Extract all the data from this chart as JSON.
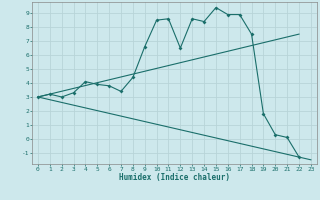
{
  "xlabel": "Humidex (Indice chaleur)",
  "bg_color": "#cde8ec",
  "line_color": "#1a6e6a",
  "grid_color": "#b8d4d8",
  "xlim": [
    -0.5,
    23.5
  ],
  "ylim": [
    -1.8,
    9.8
  ],
  "xticks": [
    0,
    1,
    2,
    3,
    4,
    5,
    6,
    7,
    8,
    9,
    10,
    11,
    12,
    13,
    14,
    15,
    16,
    17,
    18,
    19,
    20,
    21,
    22,
    23
  ],
  "yticks": [
    -1,
    0,
    1,
    2,
    3,
    4,
    5,
    6,
    7,
    8,
    9
  ],
  "curve_x": [
    0,
    1,
    2,
    3,
    4,
    5,
    6,
    7,
    8,
    9,
    10,
    11,
    12,
    13,
    14,
    15,
    16,
    17,
    18,
    19,
    20,
    21,
    22
  ],
  "curve_y": [
    3.0,
    3.2,
    3.0,
    3.3,
    4.1,
    3.9,
    3.8,
    3.4,
    4.4,
    6.6,
    8.5,
    8.6,
    6.5,
    8.6,
    8.4,
    9.4,
    8.9,
    8.9,
    7.5,
    1.8,
    0.3,
    0.1,
    -1.3
  ],
  "line1_x": [
    0,
    22
  ],
  "line1_y": [
    3.0,
    7.5
  ],
  "line2_x": [
    0,
    23
  ],
  "line2_y": [
    3.0,
    -1.5
  ]
}
